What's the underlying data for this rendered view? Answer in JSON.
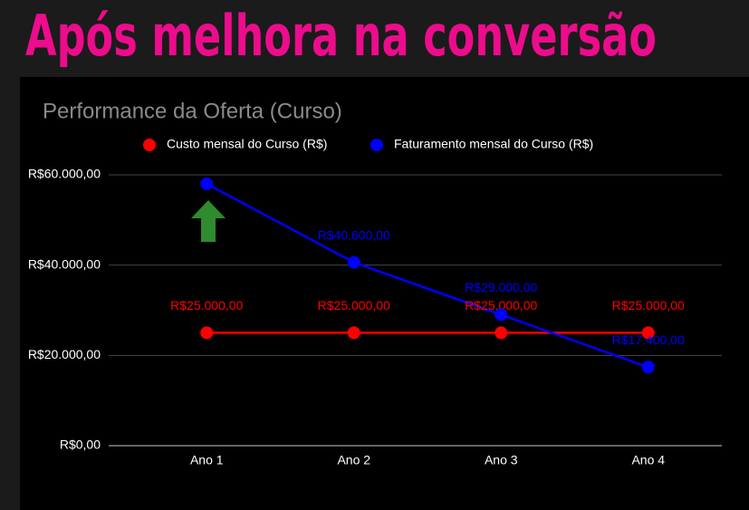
{
  "header": {
    "title": "Após melhora na conversão"
  },
  "chart_data": {
    "type": "line",
    "title": "Performance da Oferta (Curso)",
    "categories": [
      "Ano 1",
      "Ano 2",
      "Ano 3",
      "Ano 4"
    ],
    "series": [
      {
        "name": "Custo mensal do Curso (R$)",
        "color": "#ff0000",
        "values": [
          25000,
          25000,
          25000,
          25000
        ],
        "value_labels": [
          "R$25.000,00",
          "R$25.000,00",
          "R$25.000,00",
          "R$25.000,00"
        ]
      },
      {
        "name": "Faturamento mensal do Curso (R$)",
        "color": "#0000ff",
        "values": [
          58000,
          40600,
          29000,
          17400
        ],
        "value_labels": [
          null,
          "R$40.600,00",
          "R$29.000,00",
          "R$17.400,00"
        ]
      }
    ],
    "ylim": [
      0,
      60000
    ],
    "yticks": [
      {
        "value": 0,
        "label": "R$0,00"
      },
      {
        "value": 20000,
        "label": "R$20.000,00"
      },
      {
        "value": 40000,
        "label": "R$40.000,00"
      },
      {
        "value": 60000,
        "label": "R$60.000,00"
      }
    ],
    "grid": true,
    "legend": "top"
  }
}
